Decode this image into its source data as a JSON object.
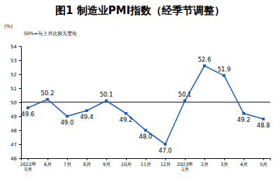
{
  "chart_data": {
    "type": "line",
    "title": "图1 制造业PMI指数（经季节调整）",
    "y_label": "(%)",
    "annotations": [
      "50%=与上月比较无变化"
    ],
    "reference_line": 50,
    "categories": [
      "2022年\n5月",
      "6月",
      "7月",
      "8月",
      "9月",
      "10月",
      "11月",
      "12月",
      "2023年\n1月",
      "2月",
      "3月",
      "4月",
      "5月"
    ],
    "values": [
      49.6,
      50.2,
      49.0,
      49.4,
      50.1,
      49.2,
      48.0,
      47.0,
      50.1,
      52.6,
      51.9,
      49.2,
      48.8
    ],
    "value_labels": [
      "49.6",
      "50.2",
      "49.0",
      "49.4",
      "50.1",
      "49.2",
      "48.0",
      "47.0",
      "50.1",
      "52.6",
      "51.9",
      "49.2",
      "48.8"
    ],
    "color": "#1f5fbf",
    "marker": "square",
    "ylim": [
      46,
      54
    ],
    "yticks": [
      46,
      47,
      48,
      49,
      50,
      51,
      52,
      53,
      54
    ],
    "grid": false,
    "data_labels": true
  }
}
